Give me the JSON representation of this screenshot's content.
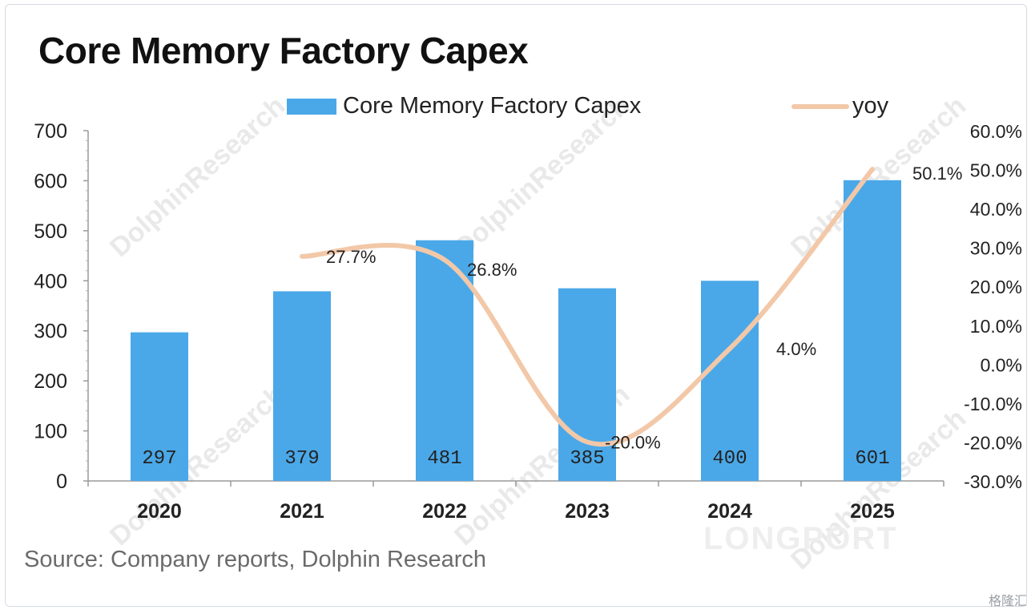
{
  "chart_data": {
    "type": "bar",
    "title": "Core Memory Factory Capex",
    "categories": [
      "2020",
      "2021",
      "2022",
      "2023",
      "2024",
      "2025"
    ],
    "series": [
      {
        "name": "Core Memory Factory Capex",
        "type": "bar",
        "axis": "left",
        "values": [
          297,
          379,
          481,
          385,
          400,
          601
        ],
        "labels": [
          "297",
          "379",
          "481",
          "385",
          "400",
          "601"
        ],
        "color": "#4aa8e8"
      },
      {
        "name": "yoy",
        "type": "line",
        "axis": "right",
        "values": [
          null,
          27.7,
          26.8,
          -20.0,
          4.0,
          50.1
        ],
        "labels": [
          "",
          "27.7%",
          "26.8%",
          "-20.0%",
          "4.0%",
          "50.1%"
        ],
        "color": "#f2c8a8"
      }
    ],
    "y_left": {
      "ylim": [
        0,
        700
      ],
      "ticks": [
        "0",
        "100",
        "200",
        "300",
        "400",
        "500",
        "600",
        "700"
      ]
    },
    "y_right": {
      "ylim": [
        -30,
        60
      ],
      "ticks": [
        "-30.0%",
        "-20.0%",
        "-10.0%",
        "0.0%",
        "10.0%",
        "20.0%",
        "30.0%",
        "40.0%",
        "50.0%",
        "60.0%"
      ]
    },
    "legend_position": "top",
    "grid": false
  },
  "source": "Source: Company reports, Dolphin Research",
  "watermarks": [
    "DolphinResearch",
    "LONGPORT"
  ],
  "corner_mark": "格隆汇"
}
